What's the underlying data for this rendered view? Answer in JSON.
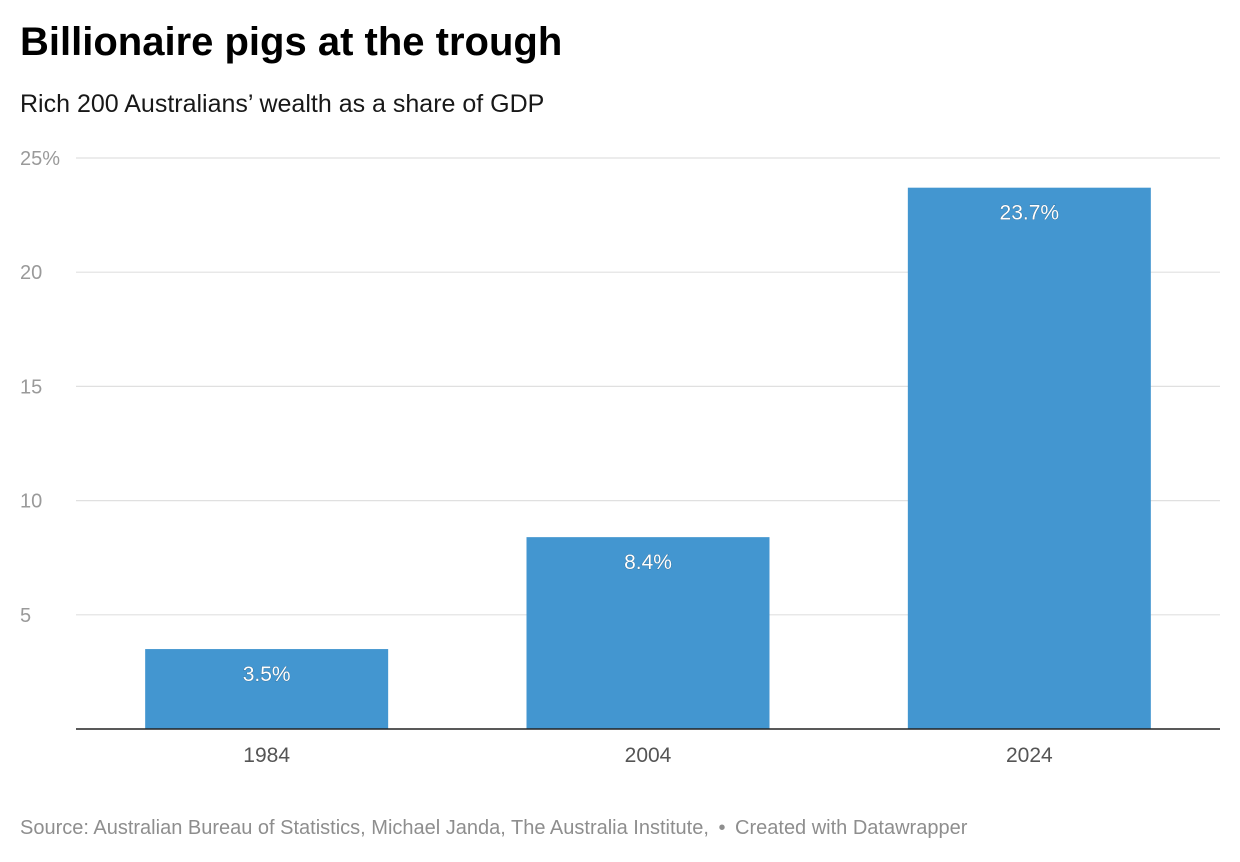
{
  "header": {
    "title": "Billionaire pigs at the trough",
    "subtitle": "Rich 200 Australians’ wealth as a share of GDP"
  },
  "footer": {
    "source": "Source: Australian Bureau of Statistics, Michael Janda, The Australia Institute,",
    "separator": "•",
    "credit": "Created with Datawrapper"
  },
  "chart_data": {
    "type": "bar",
    "categories": [
      "1984",
      "2004",
      "2024"
    ],
    "values": [
      3.5,
      8.4,
      23.7
    ],
    "value_labels": [
      "3.5%",
      "8.4%",
      "23.7%"
    ],
    "ylim": [
      0,
      25
    ],
    "yticks": [
      5,
      10,
      15,
      20,
      25
    ],
    "ytick_labels": [
      "5",
      "10",
      "15",
      "20",
      "25%"
    ],
    "grid": true,
    "bar_color": "#4396d0",
    "legend": "none"
  }
}
